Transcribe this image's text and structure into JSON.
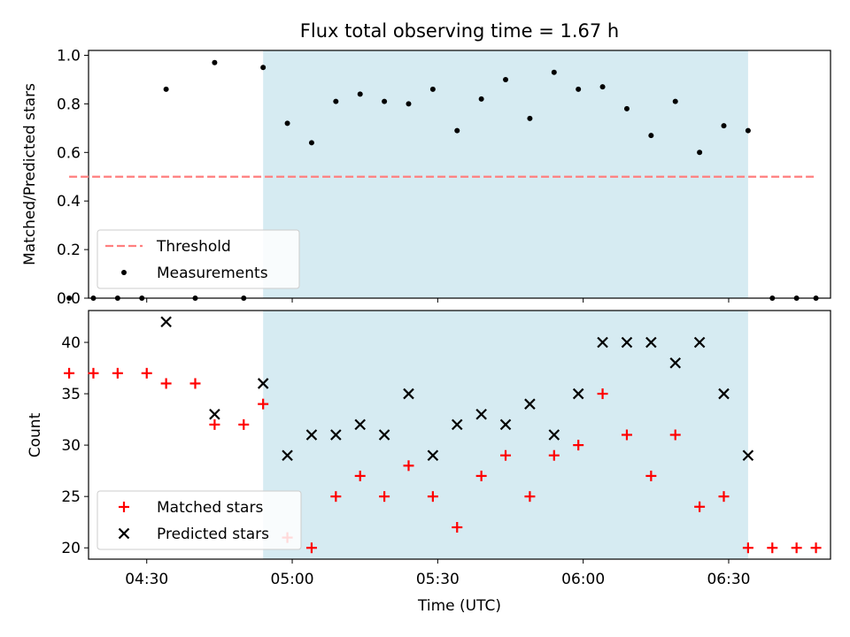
{
  "chart_data": [
    {
      "type": "scatter",
      "title": "Flux total observing time = 1.67 h",
      "xlabel": "",
      "ylabel": "Matched/Predicted stars",
      "xlim": [
        "04:18",
        "06:51"
      ],
      "ylim": [
        0.0,
        1.02
      ],
      "yticks": [
        0.0,
        0.2,
        0.4,
        0.6,
        0.8,
        1.0
      ],
      "ytick_labels": [
        "0.0",
        "0.2",
        "0.4",
        "0.6",
        "0.8",
        "1.0"
      ],
      "shaded_span": [
        "04:54",
        "06:34"
      ],
      "threshold": {
        "name": "Threshold",
        "y": 0.5,
        "x": [
          "04:14",
          "06:48"
        ],
        "color": "#ff7f7f"
      },
      "series": [
        {
          "name": "Measurements",
          "color": "#000000",
          "x": [
            "04:14",
            "04:19",
            "04:24",
            "04:29",
            "04:34",
            "04:40",
            "04:44",
            "04:50",
            "04:54",
            "04:59",
            "05:04",
            "05:09",
            "05:14",
            "05:19",
            "05:24",
            "05:29",
            "05:34",
            "05:39",
            "05:44",
            "05:49",
            "05:54",
            "05:59",
            "06:04",
            "06:09",
            "06:14",
            "06:19",
            "06:24",
            "06:29",
            "06:34",
            "06:39",
            "06:44",
            "06:48"
          ],
          "y": [
            0.0,
            0.0,
            0.0,
            0.0,
            0.86,
            0.0,
            0.97,
            0.0,
            0.95,
            0.72,
            0.64,
            0.81,
            0.84,
            0.81,
            0.8,
            0.86,
            0.69,
            0.82,
            0.9,
            0.74,
            0.93,
            0.86,
            0.87,
            0.78,
            0.67,
            0.81,
            0.6,
            0.71,
            0.69,
            0.0,
            0.0,
            0.0
          ]
        }
      ],
      "legend_position": "lower-left"
    },
    {
      "type": "scatter",
      "title": "",
      "xlabel": "Time (UTC)",
      "ylabel": "Count",
      "xlim": [
        "04:18",
        "06:51"
      ],
      "ylim": [
        18.9,
        43.1
      ],
      "yticks": [
        20,
        25,
        30,
        35,
        40
      ],
      "ytick_labels": [
        "20",
        "25",
        "30",
        "35",
        "40"
      ],
      "xticks": [
        "04:30",
        "05:00",
        "05:30",
        "06:00",
        "06:30"
      ],
      "shaded_span": [
        "04:54",
        "06:34"
      ],
      "series": [
        {
          "name": "Matched stars",
          "marker": "plus",
          "color": "#ff0000",
          "x": [
            "04:14",
            "04:19",
            "04:24",
            "04:30",
            "04:34",
            "04:40",
            "04:44",
            "04:50",
            "04:54",
            "04:59",
            "05:04",
            "05:09",
            "05:14",
            "05:19",
            "05:24",
            "05:29",
            "05:34",
            "05:39",
            "05:44",
            "05:49",
            "05:54",
            "05:59",
            "06:04",
            "06:09",
            "06:14",
            "06:19",
            "06:24",
            "06:29",
            "06:34",
            "06:39",
            "06:44",
            "06:48"
          ],
          "y": [
            37,
            37,
            37,
            37,
            36,
            36,
            32,
            32,
            34,
            21,
            20,
            25,
            27,
            25,
            28,
            25,
            22,
            27,
            29,
            25,
            29,
            30,
            35,
            31,
            27,
            31,
            24,
            25,
            20,
            20,
            20,
            20
          ]
        },
        {
          "name": "Predicted stars",
          "marker": "x",
          "color": "#000000",
          "x": [
            "04:34",
            "04:44",
            "04:54",
            "04:59",
            "05:04",
            "05:09",
            "05:14",
            "05:19",
            "05:24",
            "05:29",
            "05:34",
            "05:39",
            "05:44",
            "05:49",
            "05:54",
            "05:59",
            "06:04",
            "06:09",
            "06:14",
            "06:19",
            "06:24",
            "06:29",
            "06:34"
          ],
          "y": [
            42,
            33,
            36,
            29,
            31,
            31,
            32,
            31,
            35,
            29,
            32,
            33,
            32,
            34,
            31,
            35,
            40,
            40,
            40,
            38,
            40,
            35,
            29
          ]
        }
      ],
      "legend_position": "lower-left"
    }
  ]
}
